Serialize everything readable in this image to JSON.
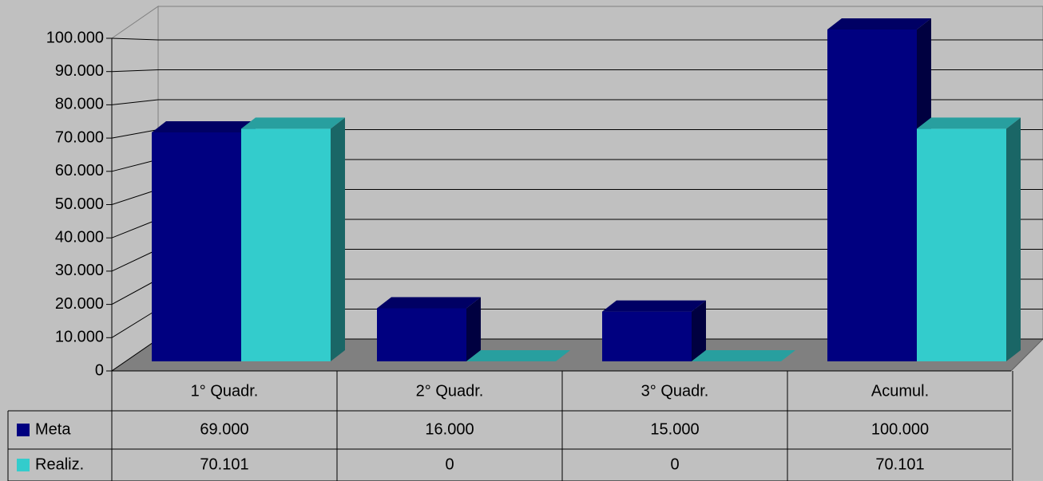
{
  "chart_data": {
    "type": "bar3d",
    "categories": [
      "1° Quadr.",
      "2° Quadr.",
      "3° Quadr.",
      "Acumul."
    ],
    "series": [
      {
        "name": "Meta",
        "color": "#000080",
        "values": [
          69000,
          16000,
          15000,
          100000
        ],
        "value_labels": [
          "69.000",
          "16.000",
          "15.000",
          "100.000"
        ]
      },
      {
        "name": "Realiz.",
        "color": "#33cccc",
        "values": [
          70101,
          0,
          0,
          70101
        ],
        "value_labels": [
          "70.101",
          "0",
          "0",
          "70.101"
        ]
      }
    ],
    "ylim": [
      0,
      100000
    ],
    "yticks": [
      0,
      {
        "value": 10000,
        "label": "10.000"
      },
      {
        "value": 20000,
        "label": "20.000"
      },
      {
        "value": 30000,
        "label": "30.000"
      },
      {
        "value": 40000,
        "label": "40.000"
      },
      {
        "value": 50000,
        "label": "50.000"
      },
      {
        "value": 60000,
        "label": "60.000"
      },
      {
        "value": 70000,
        "label": "70.000"
      },
      {
        "value": 80000,
        "label": "80.000"
      },
      {
        "value": 90000,
        "label": "90.000"
      },
      {
        "value": 100000,
        "label": "100.000"
      }
    ],
    "grid": true
  }
}
